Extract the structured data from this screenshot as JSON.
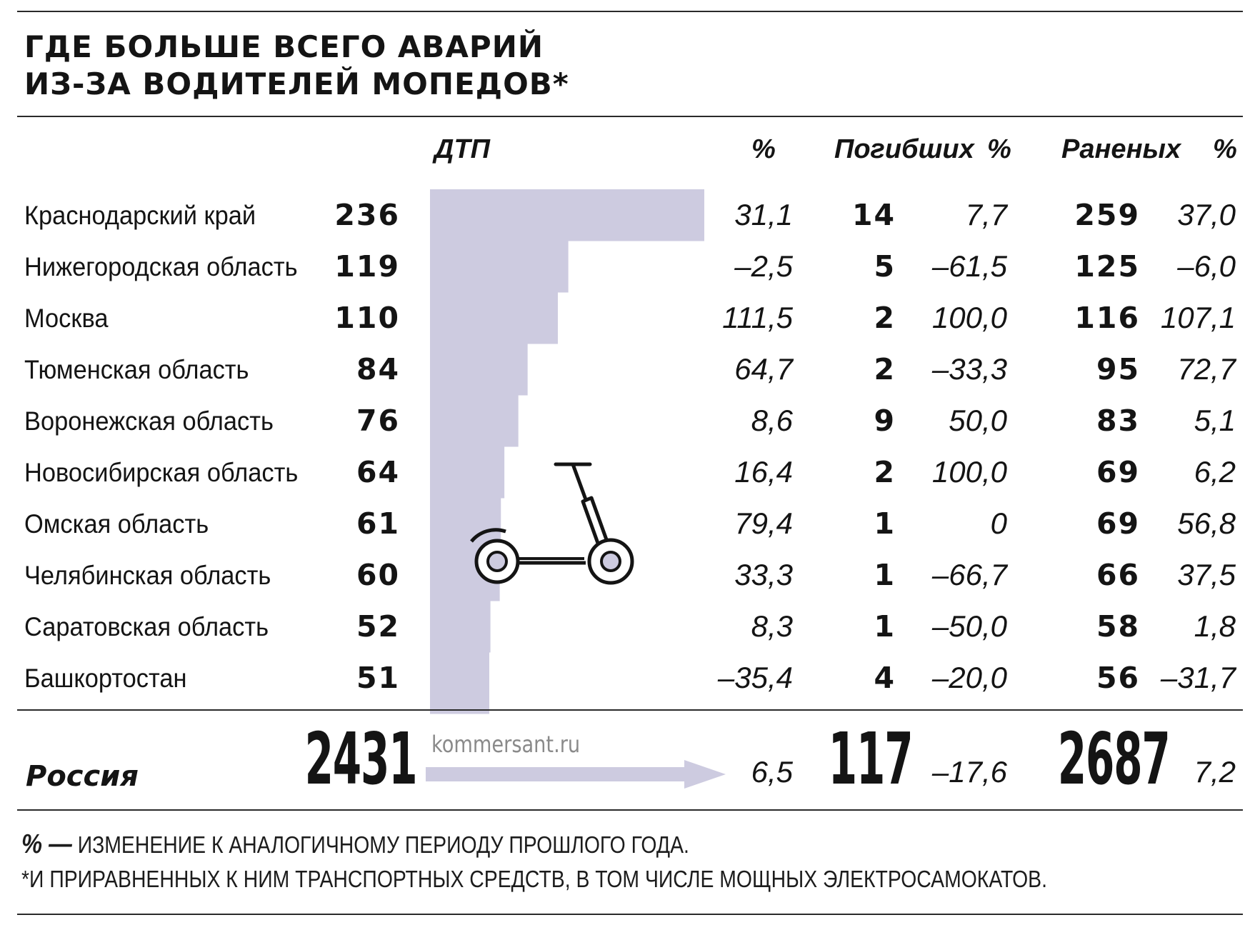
{
  "title": {
    "line1": "ГДЕ БОЛЬШЕ ВСЕГО АВАРИЙ",
    "line2": "ИЗ-ЗА ВОДИТЕЛЕЙ МОПЕДОВ*"
  },
  "headers": {
    "dtp": "ДТП",
    "dtp_pct": "%",
    "dead": "Погибших",
    "dead_pct": "%",
    "injured": "Раненых",
    "injured_pct": "%"
  },
  "rows": [
    {
      "region": "Краснодарский край",
      "dtp": "236",
      "dtp_pct": "31,1",
      "dead": "14",
      "dead_pct": "7,7",
      "injured": "259",
      "injured_pct": "37,0"
    },
    {
      "region": "Нижегородская область",
      "dtp": "119",
      "dtp_pct": "–2,5",
      "dead": "5",
      "dead_pct": "–61,5",
      "injured": "125",
      "injured_pct": "–6,0"
    },
    {
      "region": "Москва",
      "dtp": "110",
      "dtp_pct": "111,5",
      "dead": "2",
      "dead_pct": "100,0",
      "injured": "116",
      "injured_pct": "107,1"
    },
    {
      "region": "Тюменская область",
      "dtp": "84",
      "dtp_pct": "64,7",
      "dead": "2",
      "dead_pct": "–33,3",
      "injured": "95",
      "injured_pct": "72,7"
    },
    {
      "region": "Воронежская область",
      "dtp": "76",
      "dtp_pct": "8,6",
      "dead": "9",
      "dead_pct": "50,0",
      "injured": "83",
      "injured_pct": "5,1"
    },
    {
      "region": "Новосибирская область",
      "dtp": "64",
      "dtp_pct": "16,4",
      "dead": "2",
      "dead_pct": "100,0",
      "injured": "69",
      "injured_pct": "6,2"
    },
    {
      "region": "Омская область",
      "dtp": "61",
      "dtp_pct": "79,4",
      "dead": "1",
      "dead_pct": "0",
      "injured": "69",
      "injured_pct": "56,8"
    },
    {
      "region": "Челябинская область",
      "dtp": "60",
      "dtp_pct": "33,3",
      "dead": "1",
      "dead_pct": "–66,7",
      "injured": "66",
      "injured_pct": "37,5"
    },
    {
      "region": "Саратовская область",
      "dtp": "52",
      "dtp_pct": "8,3",
      "dead": "1",
      "dead_pct": "–50,0",
      "injured": "58",
      "injured_pct": "1,8"
    },
    {
      "region": "Башкортостан",
      "dtp": "51",
      "dtp_pct": "–35,4",
      "dead": "4",
      "dead_pct": "–20,0",
      "injured": "56",
      "injured_pct": "–31,7"
    }
  ],
  "total": {
    "region": "Россия",
    "dtp": "2431",
    "dtp_pct": "6,5",
    "dead": "117",
    "dead_pct": "–17,6",
    "injured": "2687",
    "injured_pct": "7,2"
  },
  "source": "kommersant.ru",
  "notes": {
    "pct_symbol": "% —",
    "pct_text": " ИЗМЕНЕНИЕ К АНАЛОГИЧНОМУ ПЕРИОДУ ПРОШЛОГО ГОДА.",
    "footnote": "*И ПРИРАВНЕННЫХ К НИМ ТРАНСПОРТНЫХ СРЕДСТВ, В ТОМ ЧИСЛЕ МОЩНЫХ ЭЛЕКТРОСАМОКАТОВ."
  },
  "colors": {
    "bar": "#cdcbe0",
    "text": "#141414",
    "source": "#8a8a8a",
    "rule": "#2a2a2a"
  },
  "icons": {
    "illustration": "scooter-icon",
    "total_arrow": "arrow-right-icon"
  },
  "chart_data": {
    "type": "bar",
    "orientation": "horizontal",
    "title": "ГДЕ БОЛЬШЕ ВСЕГО АВАРИЙ ИЗ-ЗА ВОДИТЕЛЕЙ МОПЕДОВ*",
    "categories": [
      "Краснодарский край",
      "Нижегородская область",
      "Москва",
      "Тюменская область",
      "Воронежская область",
      "Новосибирская область",
      "Омская область",
      "Челябинская область",
      "Саратовская область",
      "Башкортостан"
    ],
    "series": [
      {
        "name": "ДТП",
        "values": [
          236,
          119,
          110,
          84,
          76,
          64,
          61,
          60,
          52,
          51
        ]
      }
    ],
    "xlim": [
      0,
      236
    ],
    "grid": false,
    "legend": "none"
  }
}
